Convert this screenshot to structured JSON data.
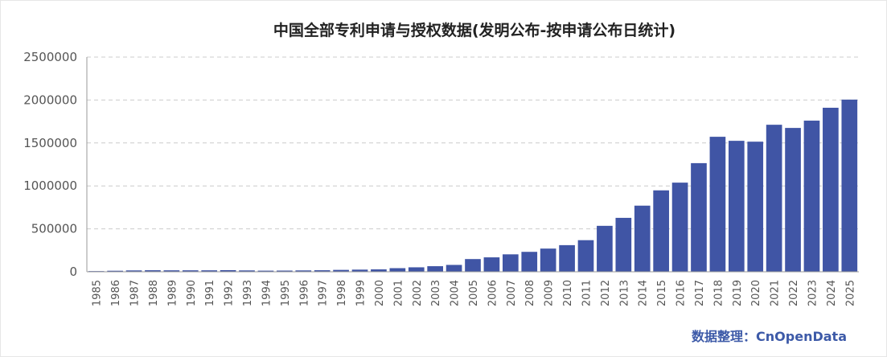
{
  "chart_data": {
    "type": "bar",
    "title": "中国全部专利申请与授权数据(发明公布-按申请公布日统计)",
    "source": "数据整理：CnOpenData",
    "categories": [
      "1985",
      "1986",
      "1987",
      "1988",
      "1989",
      "1990",
      "1991",
      "1992",
      "1993",
      "1994",
      "1995",
      "1996",
      "1997",
      "1998",
      "1999",
      "2000",
      "2001",
      "2002",
      "2003",
      "2004",
      "2005",
      "2006",
      "2007",
      "2008",
      "2009",
      "2010",
      "2011",
      "2012",
      "2013",
      "2014",
      "2015",
      "2016",
      "2017",
      "2018",
      "2019",
      "2020",
      "2021",
      "2022",
      "2023",
      "2024",
      "2025"
    ],
    "values": [
      8000,
      12000,
      16000,
      18000,
      17000,
      17000,
      17000,
      19000,
      16000,
      13000,
      14000,
      16000,
      18000,
      22000,
      25000,
      28000,
      42000,
      52000,
      65000,
      80000,
      148000,
      168000,
      203000,
      232000,
      270000,
      310000,
      368000,
      535000,
      628000,
      770000,
      948000,
      1038000,
      1265000,
      1572000,
      1525000,
      1515000,
      1712000,
      1675000,
      1760000,
      1910000,
      2005000
    ],
    "ylim": [
      0,
      2500000
    ],
    "yticks": [
      "0",
      "500000",
      "1000000",
      "1500000",
      "2000000",
      "2500000"
    ],
    "grid": true,
    "color": "#4055a5"
  }
}
